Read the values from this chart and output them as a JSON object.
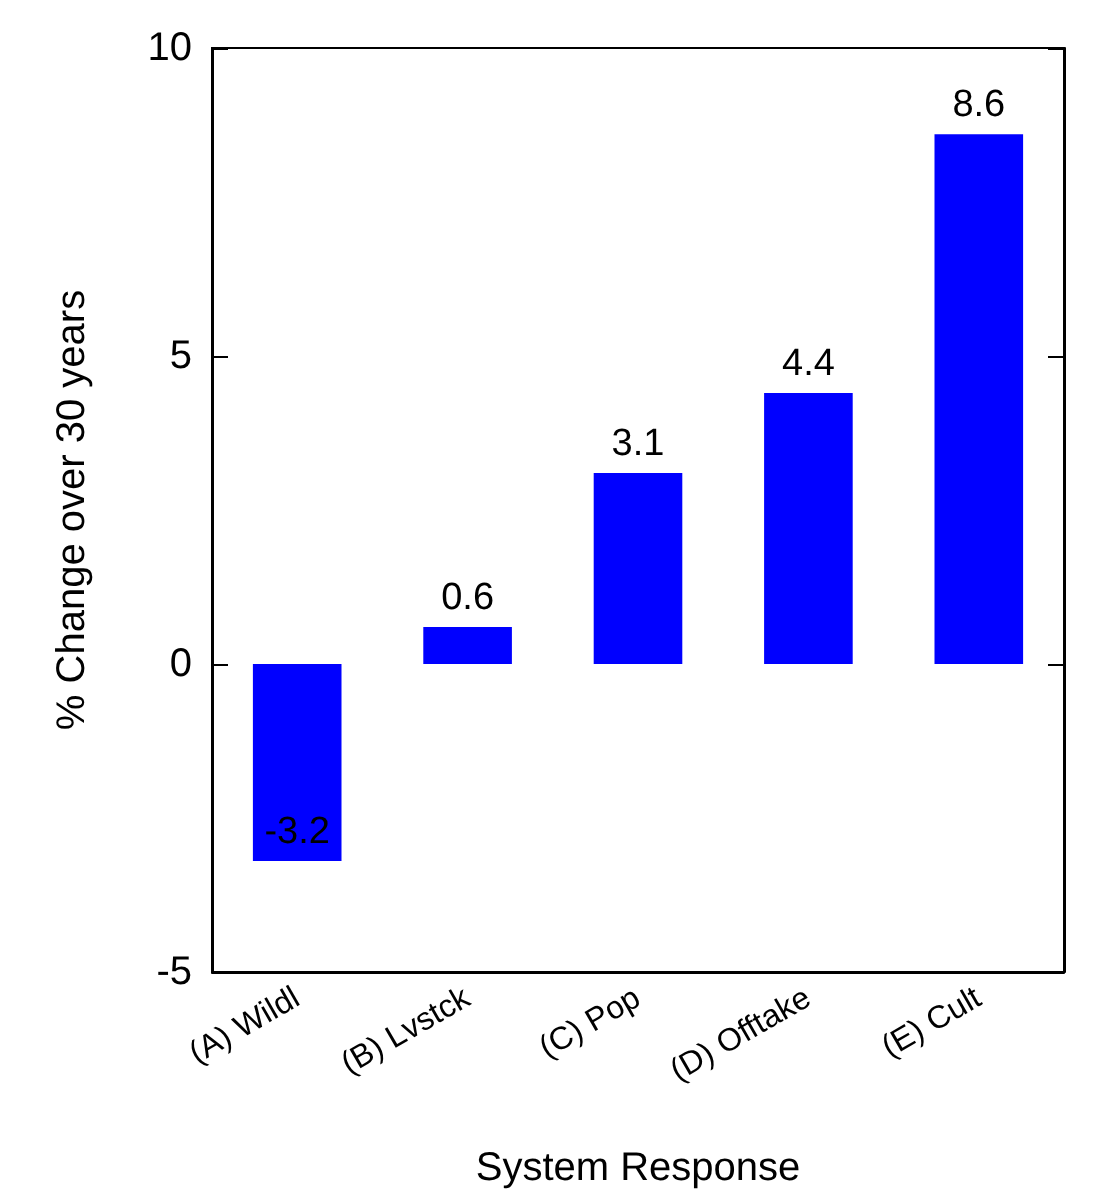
{
  "chart_data": {
    "type": "bar",
    "xlabel": "System Response",
    "ylabel": "% Change over 30 years",
    "categories": [
      "(A) Wildl",
      "(B) Lvstck",
      "(C) Pop",
      "(D) Offtake",
      "(E) Cult"
    ],
    "values": [
      -3.2,
      0.6,
      3.1,
      4.4,
      8.6
    ],
    "color": "#0000ff",
    "data_labels": true,
    "ylim": [
      -5,
      10
    ],
    "yticks": [
      -5,
      0,
      5,
      10
    ],
    "grid": false
  }
}
